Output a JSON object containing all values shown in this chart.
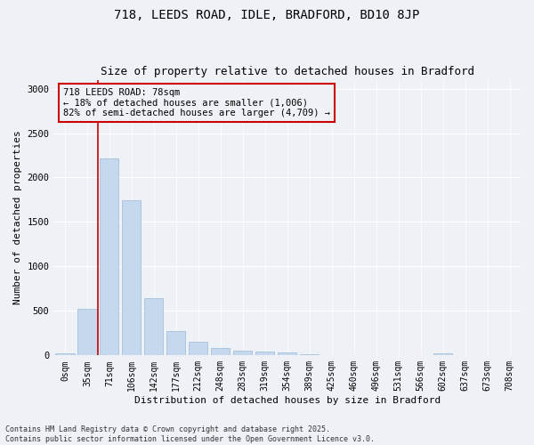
{
  "title1": "718, LEEDS ROAD, IDLE, BRADFORD, BD10 8JP",
  "title2": "Size of property relative to detached houses in Bradford",
  "xlabel": "Distribution of detached houses by size in Bradford",
  "ylabel": "Number of detached properties",
  "bar_color": "#c5d8ed",
  "bar_edge_color": "#9ab9d8",
  "categories": [
    "0sqm",
    "35sqm",
    "71sqm",
    "106sqm",
    "142sqm",
    "177sqm",
    "212sqm",
    "248sqm",
    "283sqm",
    "319sqm",
    "354sqm",
    "389sqm",
    "425sqm",
    "460sqm",
    "496sqm",
    "531sqm",
    "566sqm",
    "602sqm",
    "637sqm",
    "673sqm",
    "708sqm"
  ],
  "values": [
    20,
    520,
    2210,
    1740,
    640,
    270,
    155,
    80,
    55,
    40,
    35,
    10,
    5,
    5,
    5,
    0,
    0,
    20,
    0,
    0,
    0
  ],
  "ylim": [
    0,
    3100
  ],
  "yticks": [
    0,
    500,
    1000,
    1500,
    2000,
    2500,
    3000
  ],
  "property_line_bin": 2,
  "annotation_box_text": "718 LEEDS ROAD: 78sqm\n← 18% of detached houses are smaller (1,006)\n82% of semi-detached houses are larger (4,709) →",
  "property_line_color": "#cc0000",
  "annotation_border_color": "#cc0000",
  "background_color": "#eef2f7",
  "grid_color": "#ffffff",
  "footer_text": "Contains HM Land Registry data © Crown copyright and database right 2025.\nContains public sector information licensed under the Open Government Licence v3.0.",
  "title_fontsize": 10,
  "subtitle_fontsize": 9,
  "label_fontsize": 8,
  "tick_fontsize": 7,
  "annotation_fontsize": 7.5,
  "footer_fontsize": 6
}
